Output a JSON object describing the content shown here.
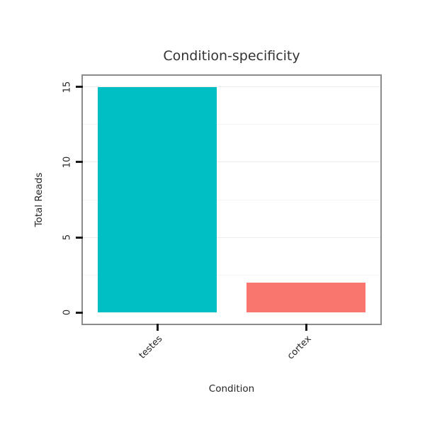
{
  "chart_data": {
    "type": "bar",
    "title": "Condition-specificity",
    "xlabel": "Condition",
    "ylabel": "Total Reads",
    "categories": [
      "testes",
      "cortex"
    ],
    "values": [
      15,
      2
    ],
    "colors": [
      "#00BFC4",
      "#F8766D"
    ],
    "ylim": [
      0,
      15
    ],
    "yticks": [
      0,
      5,
      10,
      15
    ],
    "grid_major": [
      5,
      10,
      15
    ],
    "grid_minor": [
      2.5,
      7.5,
      12.5
    ],
    "grid_major_color": "#ECECEC",
    "grid_minor_color": "#F4F4F4",
    "panel_border_color": "#8C8C8C",
    "tick_color": "#1A1A1A",
    "expand_frac": 0.05,
    "bar_width_frac": 0.8,
    "legend": "none",
    "grid": "horizontal"
  }
}
